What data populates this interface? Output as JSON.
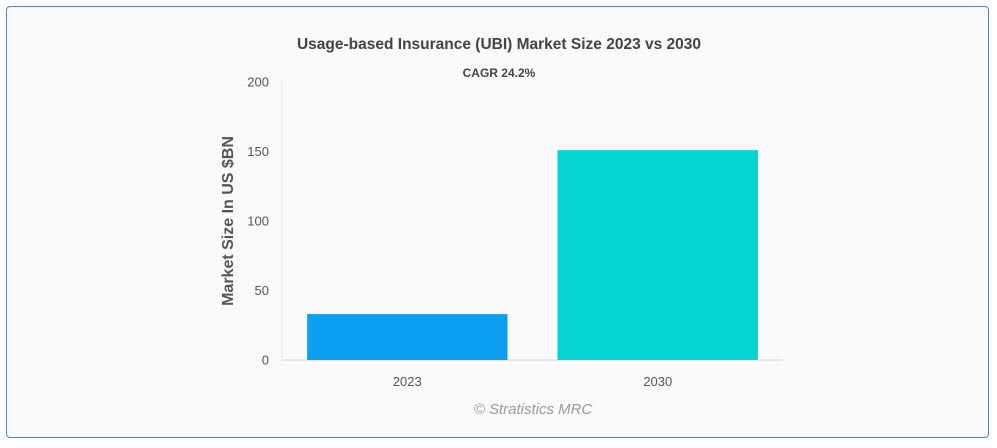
{
  "chart_data": {
    "type": "bar",
    "title": "Usage-based Insurance (UBI) Market Size 2023 vs 2030",
    "annotation": "CAGR 24.2%",
    "categories": [
      "2023",
      "2030"
    ],
    "values": [
      33,
      151
    ],
    "colors": [
      "#0aa0ef",
      "#03d3d3"
    ],
    "xlabel": "",
    "ylabel": "Market Size In US $BN",
    "ylim": [
      0,
      200
    ],
    "yticks": [
      0,
      50,
      100,
      150,
      200
    ],
    "grid": false,
    "legend": "none"
  },
  "credit": "© Stratistics MRC"
}
